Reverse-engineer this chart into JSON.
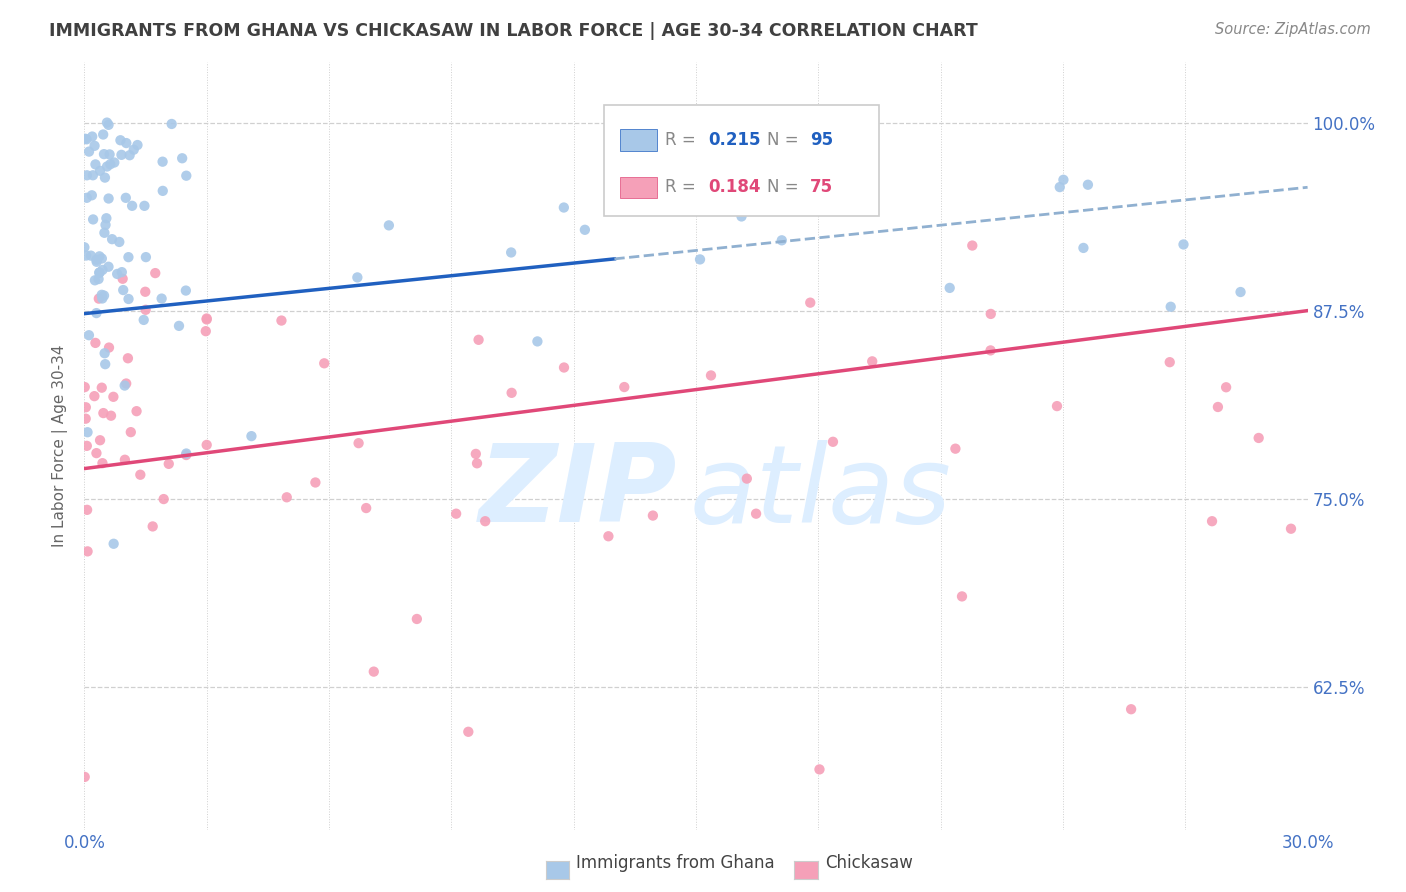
{
  "title": "IMMIGRANTS FROM GHANA VS CHICKASAW IN LABOR FORCE | AGE 30-34 CORRELATION CHART",
  "source_text": "Source: ZipAtlas.com",
  "ylabel": "In Labor Force | Age 30-34",
  "xlim": [
    0.0,
    0.3
  ],
  "ylim": [
    0.53,
    1.04
  ],
  "xticks": [
    0.0,
    0.03,
    0.06,
    0.09,
    0.12,
    0.15,
    0.18,
    0.21,
    0.24,
    0.27,
    0.3
  ],
  "xticklabels": [
    "0.0%",
    "",
    "",
    "",
    "",
    "",
    "",
    "",
    "",
    "",
    "30.0%"
  ],
  "yticks": [
    0.625,
    0.75,
    0.875,
    1.0
  ],
  "yticklabels": [
    "62.5%",
    "75.0%",
    "87.5%",
    "100.0%"
  ],
  "ghana_color": "#a8c8e8",
  "chickasaw_color": "#f5a0b8",
  "ghana_line_color": "#2060c0",
  "chickasaw_line_color": "#e04878",
  "ghana_line_dash_color": "#90b0d0",
  "grid_color": "#d0d0d0",
  "title_color": "#404040",
  "tick_color": "#4472c4",
  "ylabel_color": "#666666",
  "source_color": "#888888",
  "legend_border_color": "#cccccc",
  "watermark_color": "#ddeeff",
  "background_color": "#ffffff",
  "legend_R_color": "#888888",
  "legend_val_ghana_color": "#2060c0",
  "legend_val_chickasaw_color": "#e04878"
}
